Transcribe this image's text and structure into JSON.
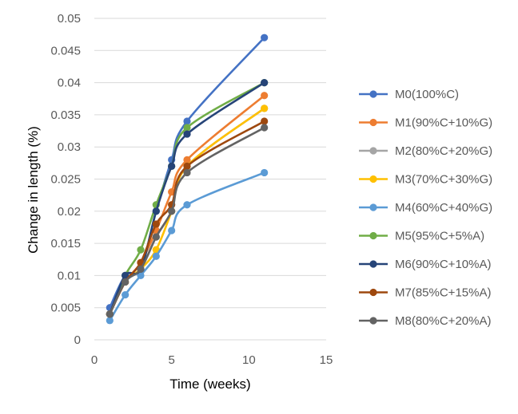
{
  "chart_data": {
    "type": "line",
    "title": "",
    "xlabel": "Time (weeks)",
    "ylabel": "Change in length (%)",
    "xlim": [
      0,
      15
    ],
    "ylim": [
      0,
      0.05
    ],
    "x_ticks": [
      "0",
      "5",
      "10",
      "15"
    ],
    "y_ticks": [
      "0",
      "0.005",
      "0.01",
      "0.015",
      "0.02",
      "0.025",
      "0.03",
      "0.035",
      "0.04",
      "0.045",
      "0.05"
    ],
    "grid": "horizontal",
    "legend_position": "right",
    "x": [
      1,
      2,
      3,
      4,
      5,
      6,
      11
    ],
    "series": [
      {
        "name": "M0(100%C)",
        "color": "#4472C4",
        "values": [
          0.005,
          0.01,
          0.011,
          0.02,
          0.028,
          0.034,
          0.047
        ]
      },
      {
        "name": "M1(90%C+10%G)",
        "color": "#ED7D31",
        "values": [
          0.004,
          0.009,
          0.012,
          0.017,
          0.023,
          0.028,
          0.038
        ]
      },
      {
        "name": "M2(80%C+20%G)",
        "color": "#A5A5A5",
        "values": [
          0.004,
          0.009,
          0.011,
          0.016,
          0.02,
          0.027,
          0.036
        ]
      },
      {
        "name": "M3(70%C+30%G)",
        "color": "#FFC000",
        "values": [
          0.004,
          0.009,
          0.011,
          0.014,
          0.02,
          0.027,
          0.036
        ]
      },
      {
        "name": "M4(60%C+40%G)",
        "color": "#5B9BD5",
        "values": [
          0.003,
          0.007,
          0.01,
          0.013,
          0.017,
          0.021,
          0.026
        ]
      },
      {
        "name": "M5(95%C+5%A)",
        "color": "#70AD47",
        "values": [
          0.004,
          0.01,
          0.014,
          0.021,
          0.027,
          0.033,
          0.04
        ]
      },
      {
        "name": "M6(90%C+10%A)",
        "color": "#264478",
        "values": [
          0.004,
          0.01,
          0.011,
          0.02,
          0.027,
          0.032,
          0.04
        ]
      },
      {
        "name": "M7(85%C+15%A)",
        "color": "#9E480E",
        "values": [
          0.004,
          0.009,
          0.012,
          0.018,
          0.021,
          0.027,
          0.034
        ]
      },
      {
        "name": "M8(80%C+20%A)",
        "color": "#636363",
        "values": [
          0.004,
          0.009,
          0.011,
          0.016,
          0.02,
          0.026,
          0.033
        ]
      }
    ]
  }
}
